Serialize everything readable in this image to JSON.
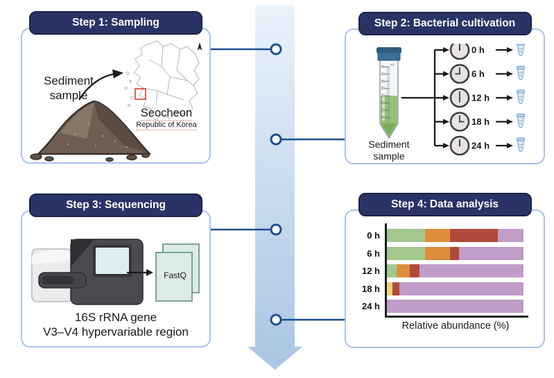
{
  "step1": {
    "title": "Step 1: Sampling",
    "sample_label_line1": "Sediment",
    "sample_label_line2": "sample",
    "location_name": "Seocheon",
    "location_country": "Republic of Korea"
  },
  "step2": {
    "title": "Step 2: Bacterial cultivation",
    "tube_label_line1": "Sediment",
    "tube_label_line2": "sample",
    "timepoints": [
      "0 h",
      "6 h",
      "12 h",
      "18 h",
      "24 h"
    ],
    "tube_unit": "mL",
    "tube_graduations": [
      "45",
      "40",
      "35",
      "30",
      "25",
      "20",
      "15",
      "10"
    ]
  },
  "step3": {
    "title": "Step 3: Sequencing",
    "file_label": "FastQ",
    "caption_line1": "16S rRNA gene",
    "caption_line2": "V3–V4 hypervariable region"
  },
  "step4": {
    "title": "Step 4: Data analysis"
  },
  "chart_data": {
    "type": "bar",
    "orientation": "horizontal",
    "stacked": true,
    "categories": [
      "0 h",
      "6 h",
      "12 h",
      "18 h",
      "24 h"
    ],
    "series": [
      {
        "name": "taxon-green",
        "color": "#a2c88e",
        "values": [
          28,
          28,
          7,
          0,
          0
        ]
      },
      {
        "name": "taxon-yellow",
        "color": "#ead47a",
        "values": [
          0,
          0,
          0,
          4,
          0
        ]
      },
      {
        "name": "taxon-orange",
        "color": "#dd8e3d",
        "values": [
          18,
          18,
          10,
          0,
          0
        ]
      },
      {
        "name": "taxon-red",
        "color": "#b04a3d",
        "values": [
          35,
          7,
          7,
          5,
          0
        ]
      },
      {
        "name": "taxon-purple",
        "color": "#c09cc8",
        "values": [
          19,
          47,
          76,
          91,
          100
        ]
      }
    ],
    "xlabel": "Relative abundance (%)",
    "xlim": [
      0,
      100
    ],
    "grid": false,
    "legend": false
  },
  "colors": {
    "header_bg": "#293366",
    "header_border": "#1b2347",
    "panel_border": "#a9c3e8",
    "connector": "#204f8d",
    "flow_arrow_top": "#e9f1fb",
    "flow_arrow_bottom": "#a9c5e3",
    "map_marker": "#d93b2b",
    "tube_cap": "#3a6f97",
    "tube_liquid": "#93c073",
    "fastq_page": "#dcebe5",
    "fastq_border": "#5f907f"
  }
}
